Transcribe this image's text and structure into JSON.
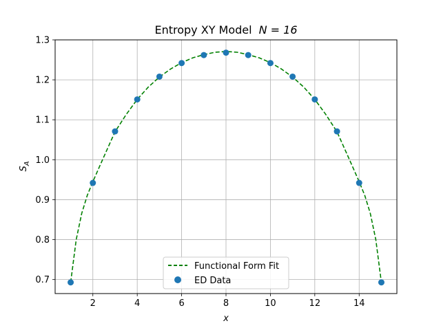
{
  "chart_data": {
    "type": "scatter",
    "title": "Entropy XY Model",
    "title_math": "N = 16",
    "xlabel": "x",
    "ylabel_main": "S",
    "ylabel_sub": "A",
    "xlim": [
      0.3,
      15.7
    ],
    "ylim": [
      0.665,
      1.3
    ],
    "xticks": [
      2,
      4,
      6,
      8,
      10,
      12,
      14
    ],
    "yticks": [
      0.7,
      0.8,
      0.9,
      1.0,
      1.1,
      1.2,
      1.3
    ],
    "ytick_labels": [
      "0.7",
      "0.8",
      "0.9",
      "1.0",
      "1.1",
      "1.2",
      "1.3"
    ],
    "grid": true,
    "legend_position": "bottom-center",
    "series": [
      {
        "name": "Functional Form Fit",
        "kind": "line",
        "style": "dashed",
        "color": "#008000",
        "x": [
          1,
          1.25,
          1.5,
          1.75,
          2,
          2.5,
          3,
          3.5,
          4,
          4.5,
          5,
          5.5,
          6,
          6.5,
          7,
          7.5,
          8,
          8.5,
          9,
          9.5,
          10,
          10.5,
          11,
          11.5,
          12,
          12.5,
          13,
          13.5,
          14,
          14.25,
          14.5,
          14.75,
          15
        ],
        "y": [
          0.693,
          0.8,
          0.866,
          0.911,
          0.945,
          1.008,
          1.07,
          1.113,
          1.151,
          1.182,
          1.207,
          1.227,
          1.243,
          1.255,
          1.263,
          1.269,
          1.271,
          1.269,
          1.263,
          1.255,
          1.243,
          1.227,
          1.207,
          1.182,
          1.151,
          1.113,
          1.07,
          1.008,
          0.945,
          0.911,
          0.866,
          0.8,
          0.693
        ]
      },
      {
        "name": "ED Data",
        "kind": "scatter",
        "color": "#1f77b4",
        "x": [
          1,
          2,
          3,
          4,
          5,
          6,
          7,
          8,
          9,
          10,
          11,
          12,
          13,
          14,
          15
        ],
        "y": [
          0.693,
          0.942,
          1.071,
          1.151,
          1.208,
          1.242,
          1.262,
          1.268,
          1.262,
          1.242,
          1.208,
          1.151,
          1.071,
          0.942,
          0.693
        ]
      }
    ]
  }
}
